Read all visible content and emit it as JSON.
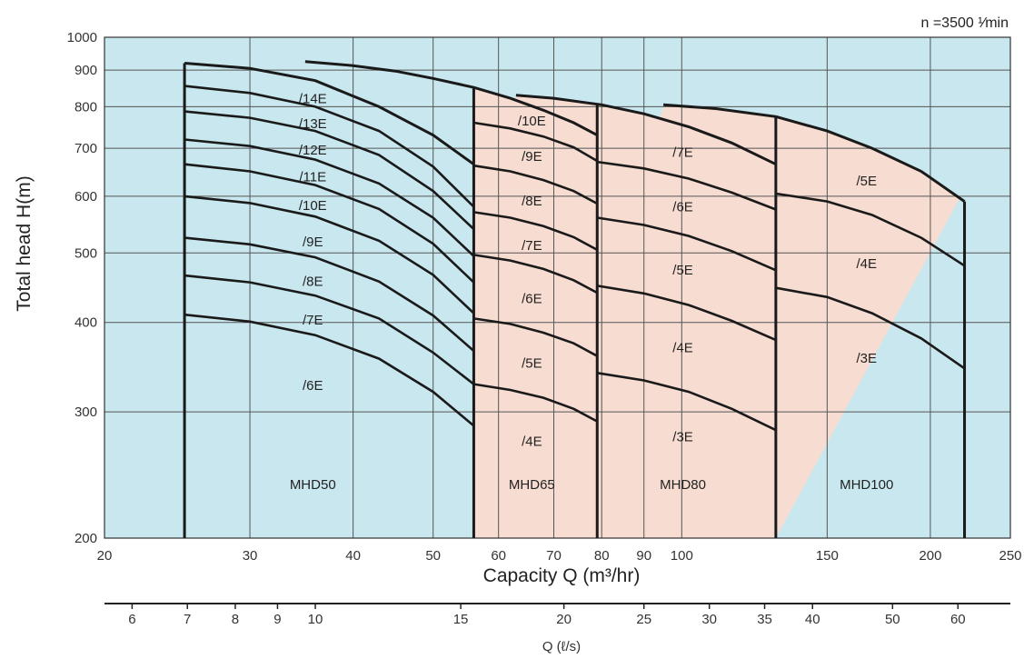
{
  "chart_data": {
    "type": "line",
    "speed_label": "n =3500 ¹⁄min",
    "ylabel": "Total head  H(m)",
    "xlabel": "Capacity Q (m³/hr)",
    "x2label": "Q (ℓ/s)",
    "x_scale": "log",
    "y_scale": "log",
    "xlim": [
      20,
      250
    ],
    "ylim": [
      200,
      1000
    ],
    "x_ticks": [
      "20",
      "30",
      "40",
      "50",
      "60",
      "70",
      "80",
      "90",
      "100",
      "150",
      "200",
      "250"
    ],
    "y_ticks": [
      "1000",
      "900",
      "800",
      "700",
      "600",
      "500",
      "400",
      "300",
      "200"
    ],
    "x2_ticks": [
      "6",
      "7",
      "8",
      "9",
      "10",
      "15",
      "20",
      "25",
      "30",
      "35",
      "40",
      "50",
      "60"
    ],
    "grid": true,
    "colors": {
      "plot_bg": "#c9e7ee",
      "region_fill": "#f7dcd2",
      "grid": "#555555",
      "curve": "#1a1a1a"
    },
    "models": [
      {
        "name": "MHD50",
        "q_range": [
          25,
          56
        ],
        "curves": [
          {
            "label": "/14E",
            "q": [
              25,
              30,
              36,
              43,
              50,
              56
            ],
            "h": [
              855,
              836,
              800,
              740,
              660,
              580
            ]
          },
          {
            "label": "/13E",
            "q": [
              25,
              30,
              36,
              43,
              50,
              56
            ],
            "h": [
              788,
              772,
              740,
              685,
              610,
              540
            ]
          },
          {
            "label": "/12E",
            "q": [
              25,
              30,
              36,
              43,
              50,
              56
            ],
            "h": [
              720,
              705,
              675,
              625,
              560,
              495
            ]
          },
          {
            "label": "/11E",
            "q": [
              25,
              30,
              36,
              43,
              50,
              56
            ],
            "h": [
              665,
              650,
              622,
              576,
              515,
              455
            ]
          },
          {
            "label": "/10E",
            "q": [
              25,
              30,
              36,
              43,
              50,
              56
            ],
            "h": [
              600,
              587,
              562,
              520,
              466,
              412
            ]
          },
          {
            "label": "/9E",
            "q": [
              25,
              30,
              36,
              43,
              50,
              56
            ],
            "h": [
              525,
              514,
              493,
              456,
              409,
              365
            ]
          },
          {
            "label": "/8E",
            "q": [
              25,
              30,
              36,
              43,
              50,
              56
            ],
            "h": [
              465,
              455,
              436,
              405,
              363,
              328
            ]
          },
          {
            "label": "/7E",
            "q": [
              25,
              30,
              36,
              43,
              50,
              56
            ],
            "h": [
              410,
              401,
              384,
              356,
              320,
              287
            ]
          },
          {
            "label": "/6E"
          }
        ],
        "max_head": {
          "q": [
            25,
            30,
            36,
            43,
            50,
            56
          ],
          "h": [
            920,
            905,
            870,
            800,
            730,
            665
          ]
        }
      },
      {
        "name": "MHD65",
        "q_range": [
          56,
          79
        ],
        "curves": [
          {
            "label": "/10E",
            "q": [
              56,
              62,
              68,
              74,
              79
            ],
            "h": [
              760,
              746,
              727,
              702,
              672
            ]
          },
          {
            "label": "/9E",
            "q": [
              56,
              62,
              68,
              74,
              79
            ],
            "h": [
              662,
              650,
              632,
              610,
              586
            ]
          },
          {
            "label": "/8E",
            "q": [
              56,
              62,
              68,
              74,
              79
            ],
            "h": [
              570,
              560,
              545,
              526,
              505
            ]
          },
          {
            "label": "/7E",
            "q": [
              56,
              62,
              68,
              74,
              79
            ],
            "h": [
              497,
              488,
              475,
              458,
              440
            ]
          },
          {
            "label": "/6E",
            "q": [
              56,
              62,
              68,
              74,
              79
            ],
            "h": [
              405,
              398,
              387,
              374,
              359
            ]
          },
          {
            "label": "/5E",
            "q": [
              56,
              62,
              68,
              74,
              79
            ],
            "h": [
              328,
              322,
              314,
              303,
              291
            ]
          },
          {
            "label": "/4E"
          }
        ],
        "max_head": {
          "q": [
            35,
            40,
            45,
            50,
            56,
            62,
            68,
            74,
            79
          ],
          "h": [
            925,
            913,
            897,
            876,
            851,
            822,
            791,
            760,
            730
          ]
        }
      },
      {
        "name": "MHD80",
        "q_range": [
          79,
          130
        ],
        "curves": [
          {
            "label": "/7E",
            "q": [
              79,
              90,
              102,
              115,
              130
            ],
            "h": [
              670,
              656,
              635,
              607,
              575
            ]
          },
          {
            "label": "/6E",
            "q": [
              79,
              90,
              102,
              115,
              130
            ],
            "h": [
              560,
              547,
              528,
              503,
              473
            ]
          },
          {
            "label": "/5E",
            "q": [
              79,
              90,
              102,
              115,
              130
            ],
            "h": [
              450,
              439,
              423,
              402,
              378
            ]
          },
          {
            "label": "/4E",
            "q": [
              79,
              90,
              102,
              115,
              130
            ],
            "h": [
              340,
              332,
              320,
              303,
              283
            ]
          },
          {
            "label": "/3E"
          }
        ],
        "max_head": {
          "q": [
            63,
            70,
            80,
            90,
            102,
            115,
            130
          ],
          "h": [
            830,
            822,
            805,
            782,
            750,
            712,
            665
          ]
        }
      },
      {
        "name": "MHD100",
        "q_range": [
          130,
          220
        ],
        "curves": [
          {
            "label": "/5E",
            "q": [
              130,
              150,
              170,
              195,
              220
            ],
            "h": [
              605,
              590,
              565,
              525,
              480
            ]
          },
          {
            "label": "/4E",
            "q": [
              130,
              150,
              170,
              195,
              220
            ],
            "h": [
              447,
              434,
              412,
              380,
              345
            ]
          },
          {
            "label": "/3E"
          }
        ],
        "max_head": {
          "q": [
            95,
            110,
            130,
            150,
            170,
            195,
            220
          ],
          "h": [
            805,
            795,
            775,
            740,
            700,
            650,
            590
          ]
        }
      }
    ]
  }
}
